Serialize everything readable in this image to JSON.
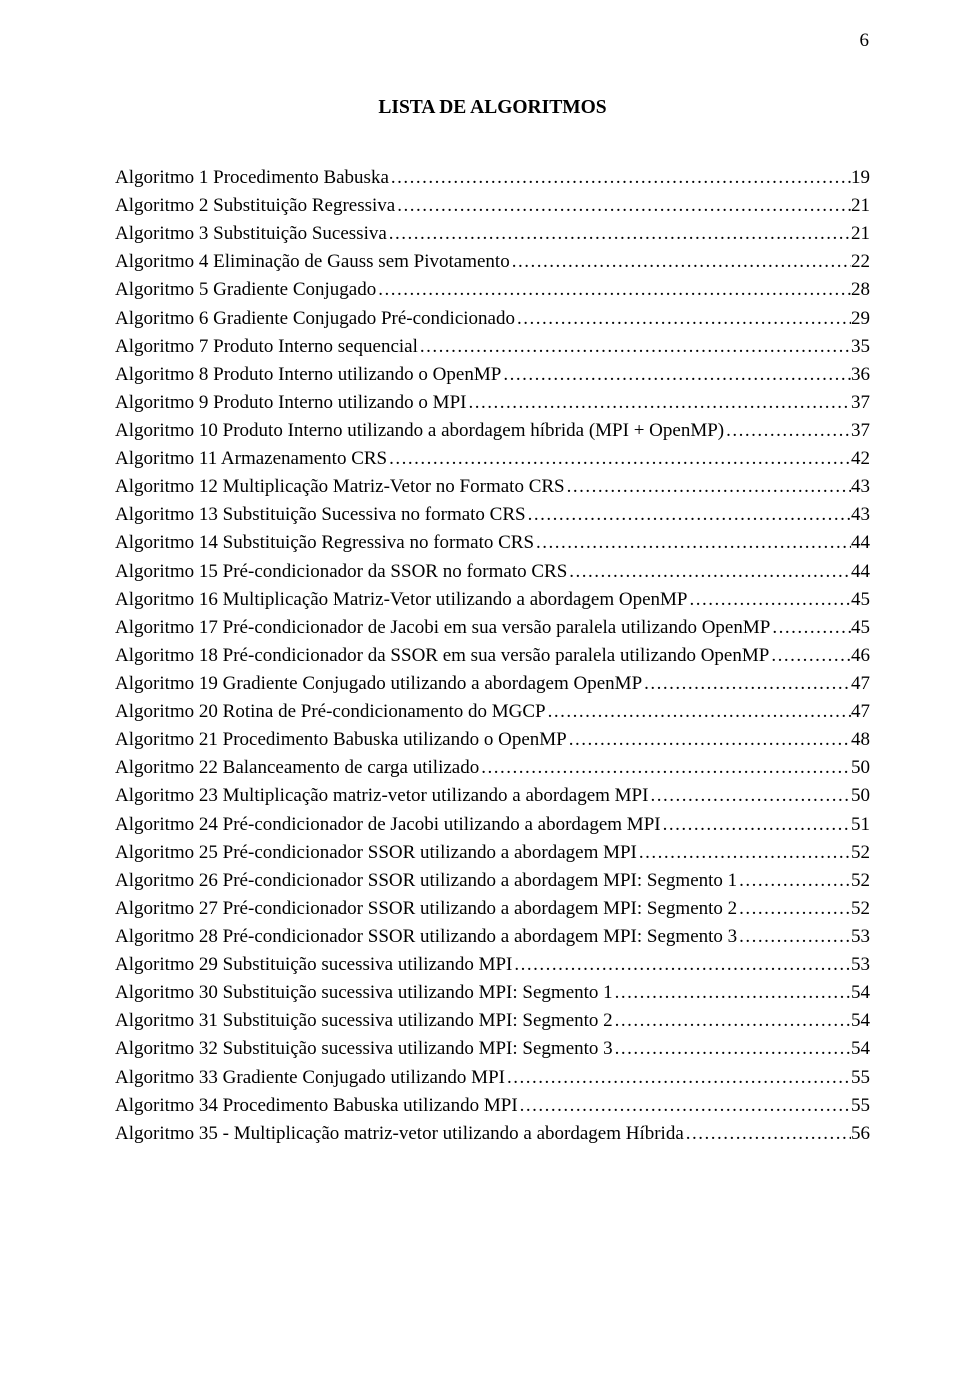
{
  "page_number": "6",
  "title": "LISTA DE ALGORITMOS",
  "dots": ".............................................................................................................................................................................................................................",
  "entries": [
    {
      "label": "Algoritmo 1 Procedimento Babuska",
      "page": "19"
    },
    {
      "label": "Algoritmo 2 Substituição Regressiva",
      "page": "21"
    },
    {
      "label": "Algoritmo 3 Substituição Sucessiva",
      "page": "21"
    },
    {
      "label": "Algoritmo 4 Eliminação de Gauss sem Pivotamento",
      "page": "22"
    },
    {
      "label": "Algoritmo 5 Gradiente Conjugado",
      "page": "28"
    },
    {
      "label": "Algoritmo 6 Gradiente Conjugado Pré-condicionado",
      "page": "29"
    },
    {
      "label": "Algoritmo 7 Produto Interno sequencial",
      "page": "35"
    },
    {
      "label": "Algoritmo 8 Produto Interno utilizando o OpenMP",
      "page": "36"
    },
    {
      "label": "Algoritmo 9 Produto Interno utilizando o MPI",
      "page": "37"
    },
    {
      "label": "Algoritmo 10 Produto Interno utilizando a abordagem híbrida (MPI + OpenMP)",
      "page": "37"
    },
    {
      "label": "Algoritmo 11 Armazenamento CRS",
      "page": "42"
    },
    {
      "label": "Algoritmo 12 Multiplicação Matriz-Vetor no Formato CRS",
      "page": "43"
    },
    {
      "label": "Algoritmo 13 Substituição Sucessiva no formato CRS",
      "page": "43"
    },
    {
      "label": "Algoritmo 14 Substituição Regressiva no formato CRS",
      "page": "44"
    },
    {
      "label": "Algoritmo 15 Pré-condicionador da SSOR no formato CRS",
      "page": "44"
    },
    {
      "label": "Algoritmo 16 Multiplicação Matriz-Vetor utilizando a abordagem OpenMP",
      "page": "45"
    },
    {
      "label": "Algoritmo 17 Pré-condicionador de Jacobi em sua versão paralela utilizando OpenMP",
      "page": "45"
    },
    {
      "label": "Algoritmo 18 Pré-condicionador da SSOR em sua versão paralela utilizando OpenMP",
      "page": "46"
    },
    {
      "label": "Algoritmo 19 Gradiente Conjugado utilizando a abordagem OpenMP",
      "page": "47"
    },
    {
      "label": "Algoritmo 20 Rotina de Pré-condicionamento do MGCP",
      "page": "47"
    },
    {
      "label": "Algoritmo 21 Procedimento Babuska utilizando o OpenMP",
      "page": "48"
    },
    {
      "label": "Algoritmo 22 Balanceamento de carga utilizado",
      "page": "50"
    },
    {
      "label": "Algoritmo 23 Multiplicação matriz-vetor utilizando a abordagem MPI",
      "page": "50"
    },
    {
      "label": "Algoritmo 24 Pré-condicionador de Jacobi utilizando a abordagem MPI",
      "page": "51"
    },
    {
      "label": "Algoritmo 25 Pré-condicionador SSOR utilizando a abordagem MPI",
      "page": "52"
    },
    {
      "label": "Algoritmo 26 Pré-condicionador SSOR utilizando a abordagem MPI: Segmento 1",
      "page": "52"
    },
    {
      "label": "Algoritmo 27 Pré-condicionador SSOR utilizando a abordagem MPI: Segmento 2",
      "page": "52"
    },
    {
      "label": "Algoritmo 28 Pré-condicionador SSOR utilizando a abordagem MPI: Segmento 3",
      "page": "53"
    },
    {
      "label": "Algoritmo 29 Substituição sucessiva utilizando MPI",
      "page": "53"
    },
    {
      "label": "Algoritmo 30 Substituição sucessiva utilizando MPI: Segmento 1",
      "page": "54"
    },
    {
      "label": "Algoritmo 31 Substituição sucessiva utilizando MPI: Segmento 2",
      "page": "54"
    },
    {
      "label": "Algoritmo 32 Substituição sucessiva utilizando MPI: Segmento 3",
      "page": "54"
    },
    {
      "label": "Algoritmo 33 Gradiente Conjugado utilizando MPI",
      "page": "55"
    },
    {
      "label": "Algoritmo 34 Procedimento Babuska utilizando MPI",
      "page": "55"
    },
    {
      "label": "Algoritmo 35 - Multiplicação matriz-vetor utilizando a abordagem Híbrida",
      "page": "56"
    }
  ]
}
